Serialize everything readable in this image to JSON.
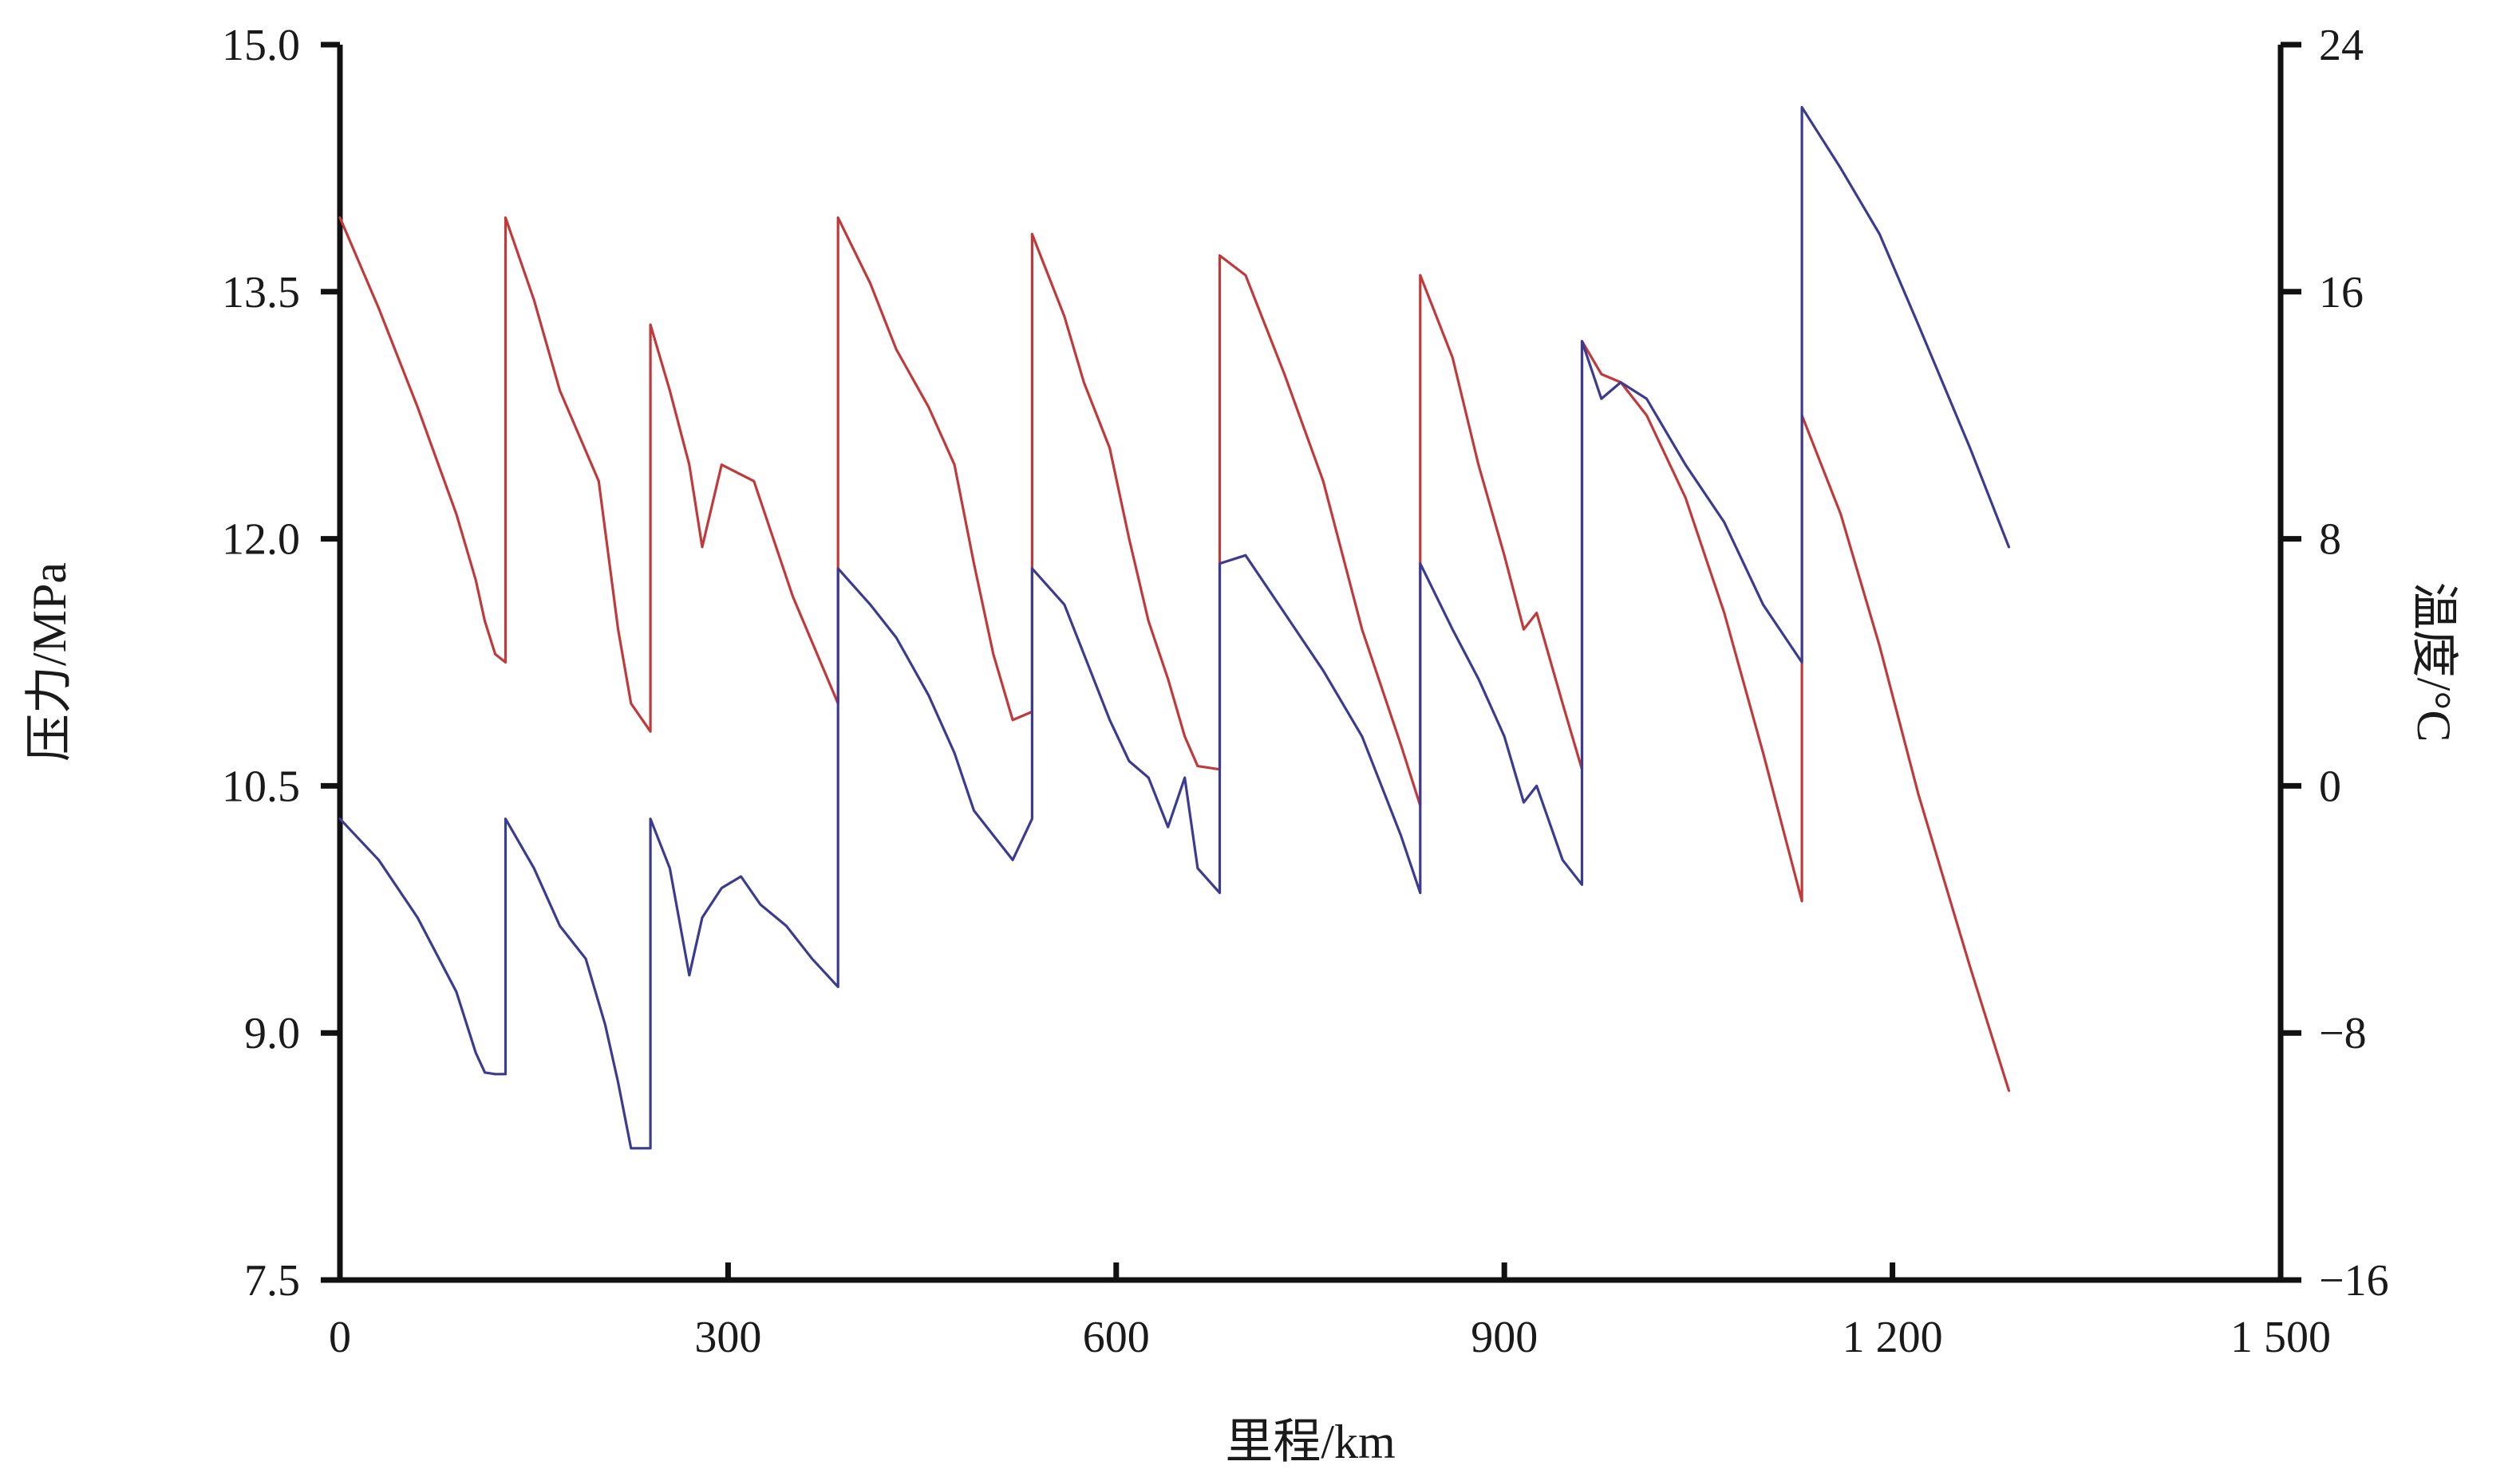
{
  "chart_data": {
    "type": "line",
    "xlabel": "里程/km",
    "ylabel_left": "压力/MPa",
    "ylabel_right": "温度/°C",
    "xlim": [
      0,
      1500
    ],
    "ylim_left": [
      7.5,
      15.0
    ],
    "ylim_right": [
      -16,
      24
    ],
    "x_ticks": [
      0,
      300,
      600,
      900,
      1200,
      1500
    ],
    "x_tick_labels": [
      "0",
      "300",
      "600",
      "900",
      "1 200",
      "1 500"
    ],
    "y_left_ticks": [
      7.5,
      9.0,
      10.5,
      12.0,
      13.5,
      15.0
    ],
    "y_left_tick_labels": [
      "7.5",
      "9.0",
      "10.5",
      "12.0",
      "13.5",
      "15.0"
    ],
    "y_right_ticks": [
      -16,
      -8,
      0,
      8,
      16,
      24
    ],
    "y_right_tick_labels": [
      "−16",
      "−8",
      "0",
      "8",
      "16",
      "24"
    ],
    "grid": false,
    "colors": {
      "red": "#c0393b",
      "blue": "#3b3b8f",
      "axis": "#111111"
    },
    "series": [
      {
        "color": "#c0393b",
        "axis": "left",
        "x": [
          0,
          30,
          60,
          90,
          105,
          112,
          120,
          128,
          128,
          150,
          170,
          200,
          215,
          225,
          240,
          240,
          255,
          270,
          280,
          295,
          320,
          350,
          385,
          385,
          410,
          430,
          455,
          475,
          490,
          505,
          520,
          535,
          535,
          560,
          575,
          595,
          610,
          625,
          640,
          653,
          663,
          680,
          680,
          700,
          730,
          760,
          790,
          820,
          835,
          835,
          860,
          880,
          900,
          915,
          925,
          945,
          960,
          960,
          975,
          990,
          1010,
          1040,
          1070,
          1100,
          1130,
          1130,
          1160,
          1190,
          1220,
          1260,
          1290
        ],
        "y": [
          13.95,
          13.4,
          12.8,
          12.15,
          11.75,
          11.5,
          11.3,
          11.25,
          13.95,
          13.45,
          12.9,
          12.35,
          11.45,
          11.0,
          10.83,
          13.3,
          12.9,
          12.45,
          11.95,
          12.45,
          12.35,
          11.65,
          11.0,
          13.95,
          13.55,
          13.15,
          12.8,
          12.45,
          11.85,
          11.3,
          10.9,
          10.95,
          13.85,
          13.35,
          12.95,
          12.55,
          12.0,
          11.5,
          11.15,
          10.8,
          10.62,
          10.6,
          13.72,
          13.6,
          13.0,
          12.35,
          11.45,
          10.75,
          10.38,
          13.6,
          13.1,
          12.45,
          11.9,
          11.45,
          11.55,
          11.0,
          10.6,
          13.2,
          13.0,
          12.95,
          12.75,
          12.25,
          11.55,
          10.7,
          9.8,
          12.75,
          12.15,
          11.35,
          10.45,
          9.4,
          8.65
        ]
      },
      {
        "color": "#3b3b8f",
        "axis": "left",
        "x": [
          0,
          30,
          60,
          90,
          105,
          112,
          120,
          128,
          128,
          150,
          170,
          190,
          205,
          215,
          225,
          240,
          240,
          255,
          270,
          280,
          295,
          310,
          325,
          345,
          365,
          385,
          385,
          410,
          430,
          455,
          475,
          490,
          505,
          520,
          535,
          535,
          560,
          575,
          595,
          610,
          625,
          640,
          653,
          663,
          680,
          680,
          700,
          730,
          760,
          790,
          820,
          835,
          835,
          860,
          880,
          900,
          915,
          925,
          945,
          960,
          960,
          975,
          990,
          1010,
          1040,
          1070,
          1100,
          1130,
          1130,
          1160,
          1190,
          1220,
          1260,
          1290
        ],
        "y": [
          10.3,
          10.05,
          9.7,
          9.25,
          8.88,
          8.76,
          8.75,
          8.75,
          10.3,
          10.0,
          9.65,
          9.45,
          9.05,
          8.7,
          8.3,
          8.3,
          10.3,
          10.0,
          9.35,
          9.7,
          9.88,
          9.95,
          9.78,
          9.65,
          9.45,
          9.28,
          11.82,
          11.6,
          11.4,
          11.05,
          10.7,
          10.35,
          10.2,
          10.05,
          10.3,
          11.82,
          11.6,
          11.3,
          10.9,
          10.65,
          10.55,
          10.25,
          10.55,
          10.0,
          9.85,
          11.85,
          11.9,
          11.55,
          11.2,
          10.8,
          10.2,
          9.85,
          11.85,
          11.45,
          11.15,
          10.8,
          10.4,
          10.5,
          10.05,
          9.9,
          13.2,
          12.85,
          12.95,
          12.85,
          12.45,
          12.1,
          11.6,
          11.25,
          14.62,
          14.25,
          13.85,
          13.3,
          12.55,
          11.95
        ]
      }
    ]
  }
}
